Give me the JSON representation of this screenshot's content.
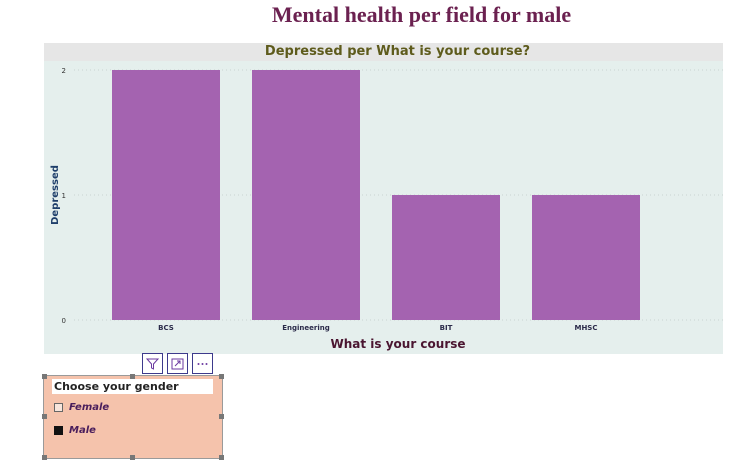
{
  "page": {
    "title": "Mental health per field for male"
  },
  "colors": {
    "bar": "#a463b0",
    "plot_background": "#e5efed",
    "title_bar": "#e6e6e6",
    "chart_title_text": "#5e5b1c",
    "axis_title_text": "#4a1530",
    "slicer_background": "#f5c3ac"
  },
  "toolbar": {
    "filter_icon": "filter-icon",
    "focus_icon": "focus-mode-icon",
    "more_icon": "more-options-icon"
  },
  "chart_data": {
    "type": "bar",
    "title": "Depressed per What is your course?",
    "xlabel": "What is your course",
    "ylabel": "Depressed",
    "categories": [
      "BCS",
      "Engineering",
      "BIT",
      "MHSC"
    ],
    "values": [
      2,
      2,
      1,
      1
    ],
    "ylim": [
      0,
      2
    ],
    "yticks": [
      0,
      1,
      2
    ],
    "grid": true,
    "legend": "none"
  },
  "slicer": {
    "title": "Choose your gender",
    "options": [
      {
        "label": "Female",
        "checked": false
      },
      {
        "label": "Male",
        "checked": true
      }
    ]
  }
}
